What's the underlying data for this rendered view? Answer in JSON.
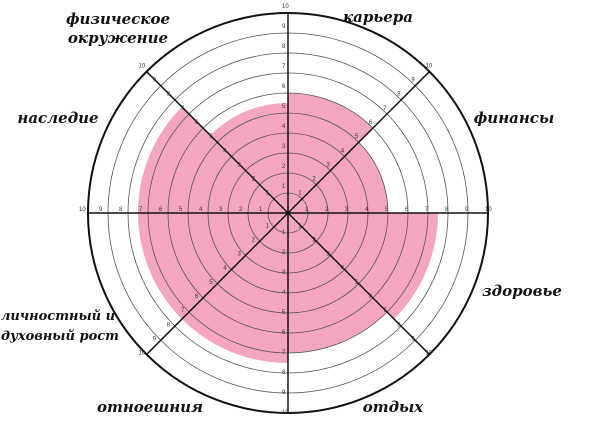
{
  "chart_data": {
    "type": "radar",
    "style": "wheel-of-life sectors",
    "scale": [
      0,
      10
    ],
    "ticks": [
      1,
      2,
      3,
      4,
      5,
      6,
      7,
      8,
      9,
      10
    ],
    "fill_color": "#f4a6bf",
    "ring_color": "#555555",
    "spoke_color": "#111111",
    "sectors": [
      {
        "label": "карьера",
        "value": 6
      },
      {
        "label": "финансы",
        "value": 5
      },
      {
        "label": "здоровье",
        "value": 7.5
      },
      {
        "label": "отдых",
        "value": 7
      },
      {
        "label": "отноешния",
        "value": 7.5
      },
      {
        "label": "личностный и духовный рост",
        "value": 7.5
      },
      {
        "label": "наследие",
        "value": 7.5
      },
      {
        "label": "физическое окружение",
        "value": 5.5
      }
    ]
  }
}
